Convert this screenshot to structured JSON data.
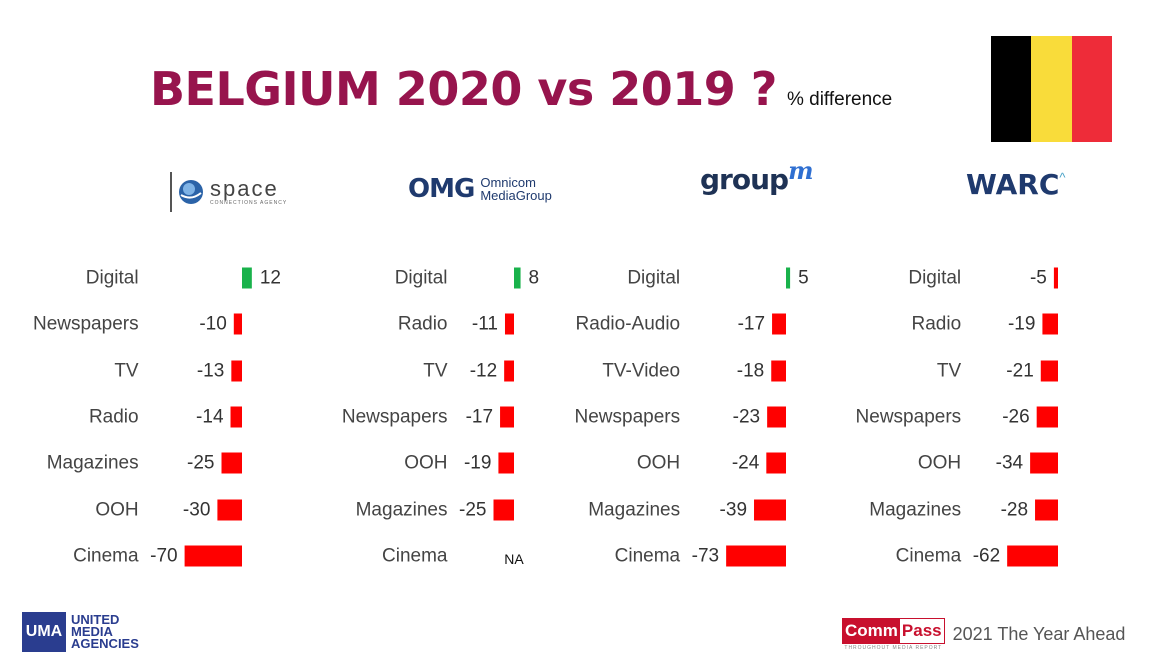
{
  "title": {
    "main": "BELGIUM 2020 vs 2019 ?",
    "sub": "% difference"
  },
  "flag": {
    "colors": [
      "#000000",
      "#f9dc3a",
      "#ee2c39"
    ]
  },
  "logos": {
    "space": {
      "name": "space",
      "tagline": "CONNECTIONS AGENCY"
    },
    "omg": {
      "mark": "OMG",
      "line1": "Omnicom",
      "line2": "MediaGroup"
    },
    "groupm": {
      "main": "group",
      "sup": "m"
    },
    "warc": {
      "main": "WARC",
      "caret": "^"
    }
  },
  "chart_data": [
    {
      "type": "bar",
      "orientation": "horizontal",
      "source": "space",
      "categories": [
        "Digital",
        "Newspapers",
        "TV",
        "Radio",
        "Magazines",
        "OOH",
        "Cinema"
      ],
      "values": [
        12,
        -10,
        -13,
        -14,
        -25,
        -30,
        -70
      ],
      "labels": [
        "12",
        "-10",
        "-13",
        "-14",
        "-25",
        "-30",
        "-70"
      ]
    },
    {
      "type": "bar",
      "orientation": "horizontal",
      "source": "OMG",
      "categories": [
        "Digital",
        "Radio",
        "TV",
        "Newspapers",
        "OOH",
        "Magazines",
        "Cinema"
      ],
      "values": [
        8,
        -11,
        -12,
        -17,
        -19,
        -25,
        null
      ],
      "labels": [
        "8",
        "-11",
        "-12",
        "-17",
        "-19",
        "-25",
        "NA"
      ]
    },
    {
      "type": "bar",
      "orientation": "horizontal",
      "source": "groupm",
      "categories": [
        "Digital",
        "Radio-Audio",
        "TV-Video",
        "Newspapers",
        "OOH",
        "Magazines",
        "Cinema"
      ],
      "values": [
        5,
        -17,
        -18,
        -23,
        -24,
        -39,
        -73
      ],
      "labels": [
        "5",
        "-17",
        "-18",
        "-23",
        "-24",
        "-39",
        "-73"
      ]
    },
    {
      "type": "bar",
      "orientation": "horizontal",
      "source": "WARC",
      "categories": [
        "Digital",
        "Radio",
        "TV",
        "Newspapers",
        "OOH",
        "Magazines",
        "Cinema"
      ],
      "values": [
        -5,
        -19,
        -21,
        -26,
        -34,
        -28,
        -62
      ],
      "labels": [
        "-5",
        "-19",
        "-21",
        "-26",
        "-34",
        "-28",
        "-62"
      ]
    }
  ],
  "colors": {
    "positive": "#19b24b",
    "negative": "#ff0000",
    "title": "#97144d"
  },
  "footer": {
    "uma_box": "UMA",
    "uma_lines": [
      "UNITED",
      "MEDIA",
      "AGENCIES"
    ],
    "commpass_a": "Comm",
    "commpass_b": "Pass",
    "commpass_tag": "THROUGHOUT MEDIA REPORT",
    "year_ahead": "2021 The Year Ahead"
  }
}
